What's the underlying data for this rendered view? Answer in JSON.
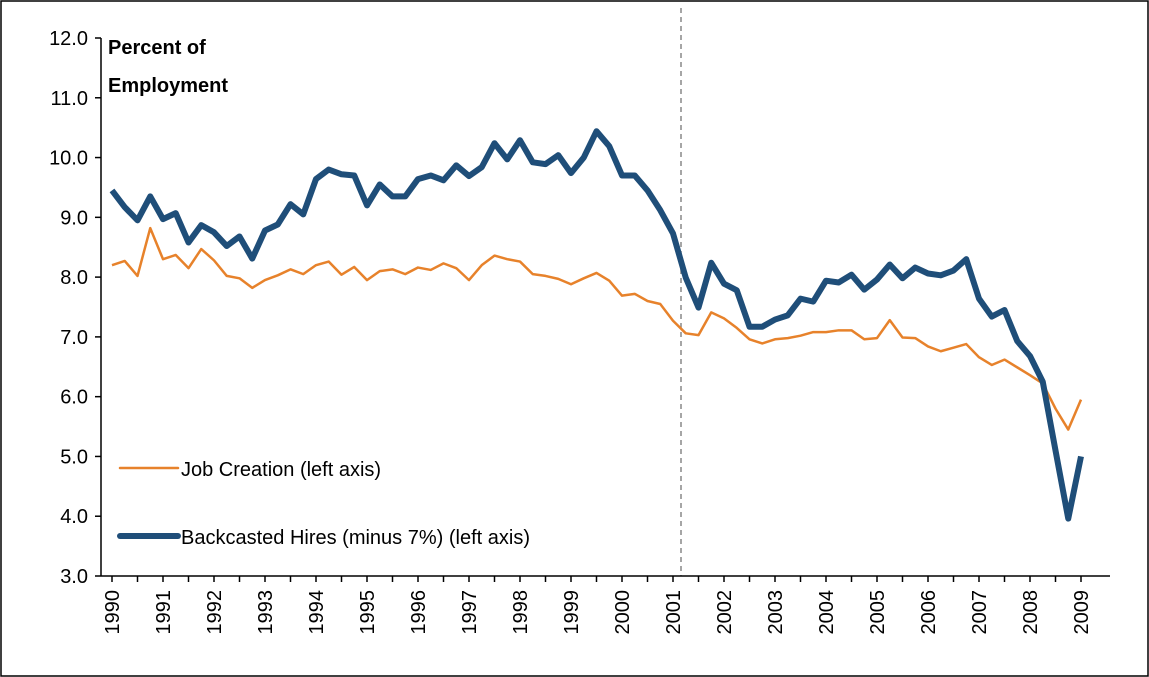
{
  "chart_data": {
    "type": "line",
    "ylabel_lines": [
      "Percent of",
      "Employment"
    ],
    "categories": [
      "1990",
      null,
      null,
      null,
      "1991",
      null,
      null,
      null,
      "1992",
      null,
      null,
      null,
      "1993",
      null,
      null,
      null,
      "1994",
      null,
      null,
      null,
      "1995",
      null,
      null,
      null,
      "1996",
      null,
      null,
      null,
      "1997",
      null,
      null,
      null,
      "1998",
      null,
      null,
      null,
      "1999",
      null,
      null,
      null,
      "2000",
      null,
      null,
      null,
      "2001",
      null,
      null,
      null,
      "2002",
      null,
      null,
      null,
      "2003",
      null,
      null,
      null,
      "2004",
      null,
      null,
      null,
      "2005",
      null,
      null,
      null,
      "2006",
      null,
      null,
      null,
      "2007",
      null,
      null,
      null,
      "2008",
      null,
      null,
      null,
      "2009"
    ],
    "series": [
      {
        "name": "Job Creation (left axis)",
        "color": "#e7822b",
        "width": 2.5,
        "values": [
          8.2,
          8.27,
          8.02,
          8.82,
          8.3,
          8.37,
          8.15,
          8.47,
          8.28,
          8.02,
          7.98,
          7.82,
          7.95,
          8.03,
          8.13,
          8.05,
          8.2,
          8.26,
          8.04,
          8.17,
          7.95,
          8.1,
          8.13,
          8.05,
          8.16,
          8.12,
          8.23,
          8.15,
          7.95,
          8.2,
          8.36,
          8.3,
          8.26,
          8.05,
          8.02,
          7.97,
          7.88,
          7.98,
          8.07,
          7.94,
          7.69,
          7.72,
          7.6,
          7.55,
          7.27,
          7.06,
          7.03,
          7.41,
          7.31,
          7.15,
          6.96,
          6.89,
          6.96,
          6.98,
          7.02,
          7.08,
          7.08,
          7.11,
          7.11,
          6.96,
          6.98,
          7.28,
          6.99,
          6.98,
          6.84,
          6.76,
          6.82,
          6.88,
          6.66,
          6.53,
          6.62,
          6.49,
          6.36,
          6.22,
          5.8,
          5.45,
          5.95
        ]
      },
      {
        "name": "Backcasted Hires (minus 7%) (left axis)",
        "color": "#1f4e79",
        "width": 6,
        "values": [
          9.45,
          9.17,
          8.95,
          9.35,
          8.97,
          9.07,
          8.58,
          8.87,
          8.75,
          8.52,
          8.68,
          8.31,
          8.78,
          8.88,
          9.22,
          9.05,
          9.64,
          9.8,
          9.72,
          9.7,
          9.2,
          9.55,
          9.35,
          9.35,
          9.64,
          9.7,
          9.62,
          9.87,
          9.69,
          9.84,
          10.24,
          9.97,
          10.29,
          9.92,
          9.89,
          10.04,
          9.74,
          10.0,
          10.44,
          10.19,
          9.7,
          9.7,
          9.45,
          9.12,
          8.73,
          7.99,
          7.49,
          8.24,
          7.89,
          7.78,
          7.17,
          7.17,
          7.29,
          7.36,
          7.64,
          7.59,
          7.94,
          7.91,
          8.04,
          7.79,
          7.96,
          8.21,
          7.98,
          8.16,
          8.06,
          8.03,
          8.11,
          8.3,
          7.64,
          7.34,
          7.45,
          6.93,
          6.68,
          6.25,
          5.1,
          3.96,
          5.0
        ]
      }
    ],
    "ylim": [
      3,
      12
    ],
    "yticks": [
      {
        "value": 3,
        "label": "3.0"
      },
      {
        "value": 4,
        "label": "4.0"
      },
      {
        "value": 5,
        "label": "5.0"
      },
      {
        "value": 6,
        "label": "6.0"
      },
      {
        "value": 7,
        "label": "7.0"
      },
      {
        "value": 8,
        "label": "8.0"
      },
      {
        "value": 9,
        "label": "9.0"
      },
      {
        "value": 10,
        "label": "10.0"
      },
      {
        "value": 11,
        "label": "11.0"
      },
      {
        "value": 12,
        "label": "12.0"
      }
    ],
    "grid": false,
    "legend": "lower left"
  }
}
